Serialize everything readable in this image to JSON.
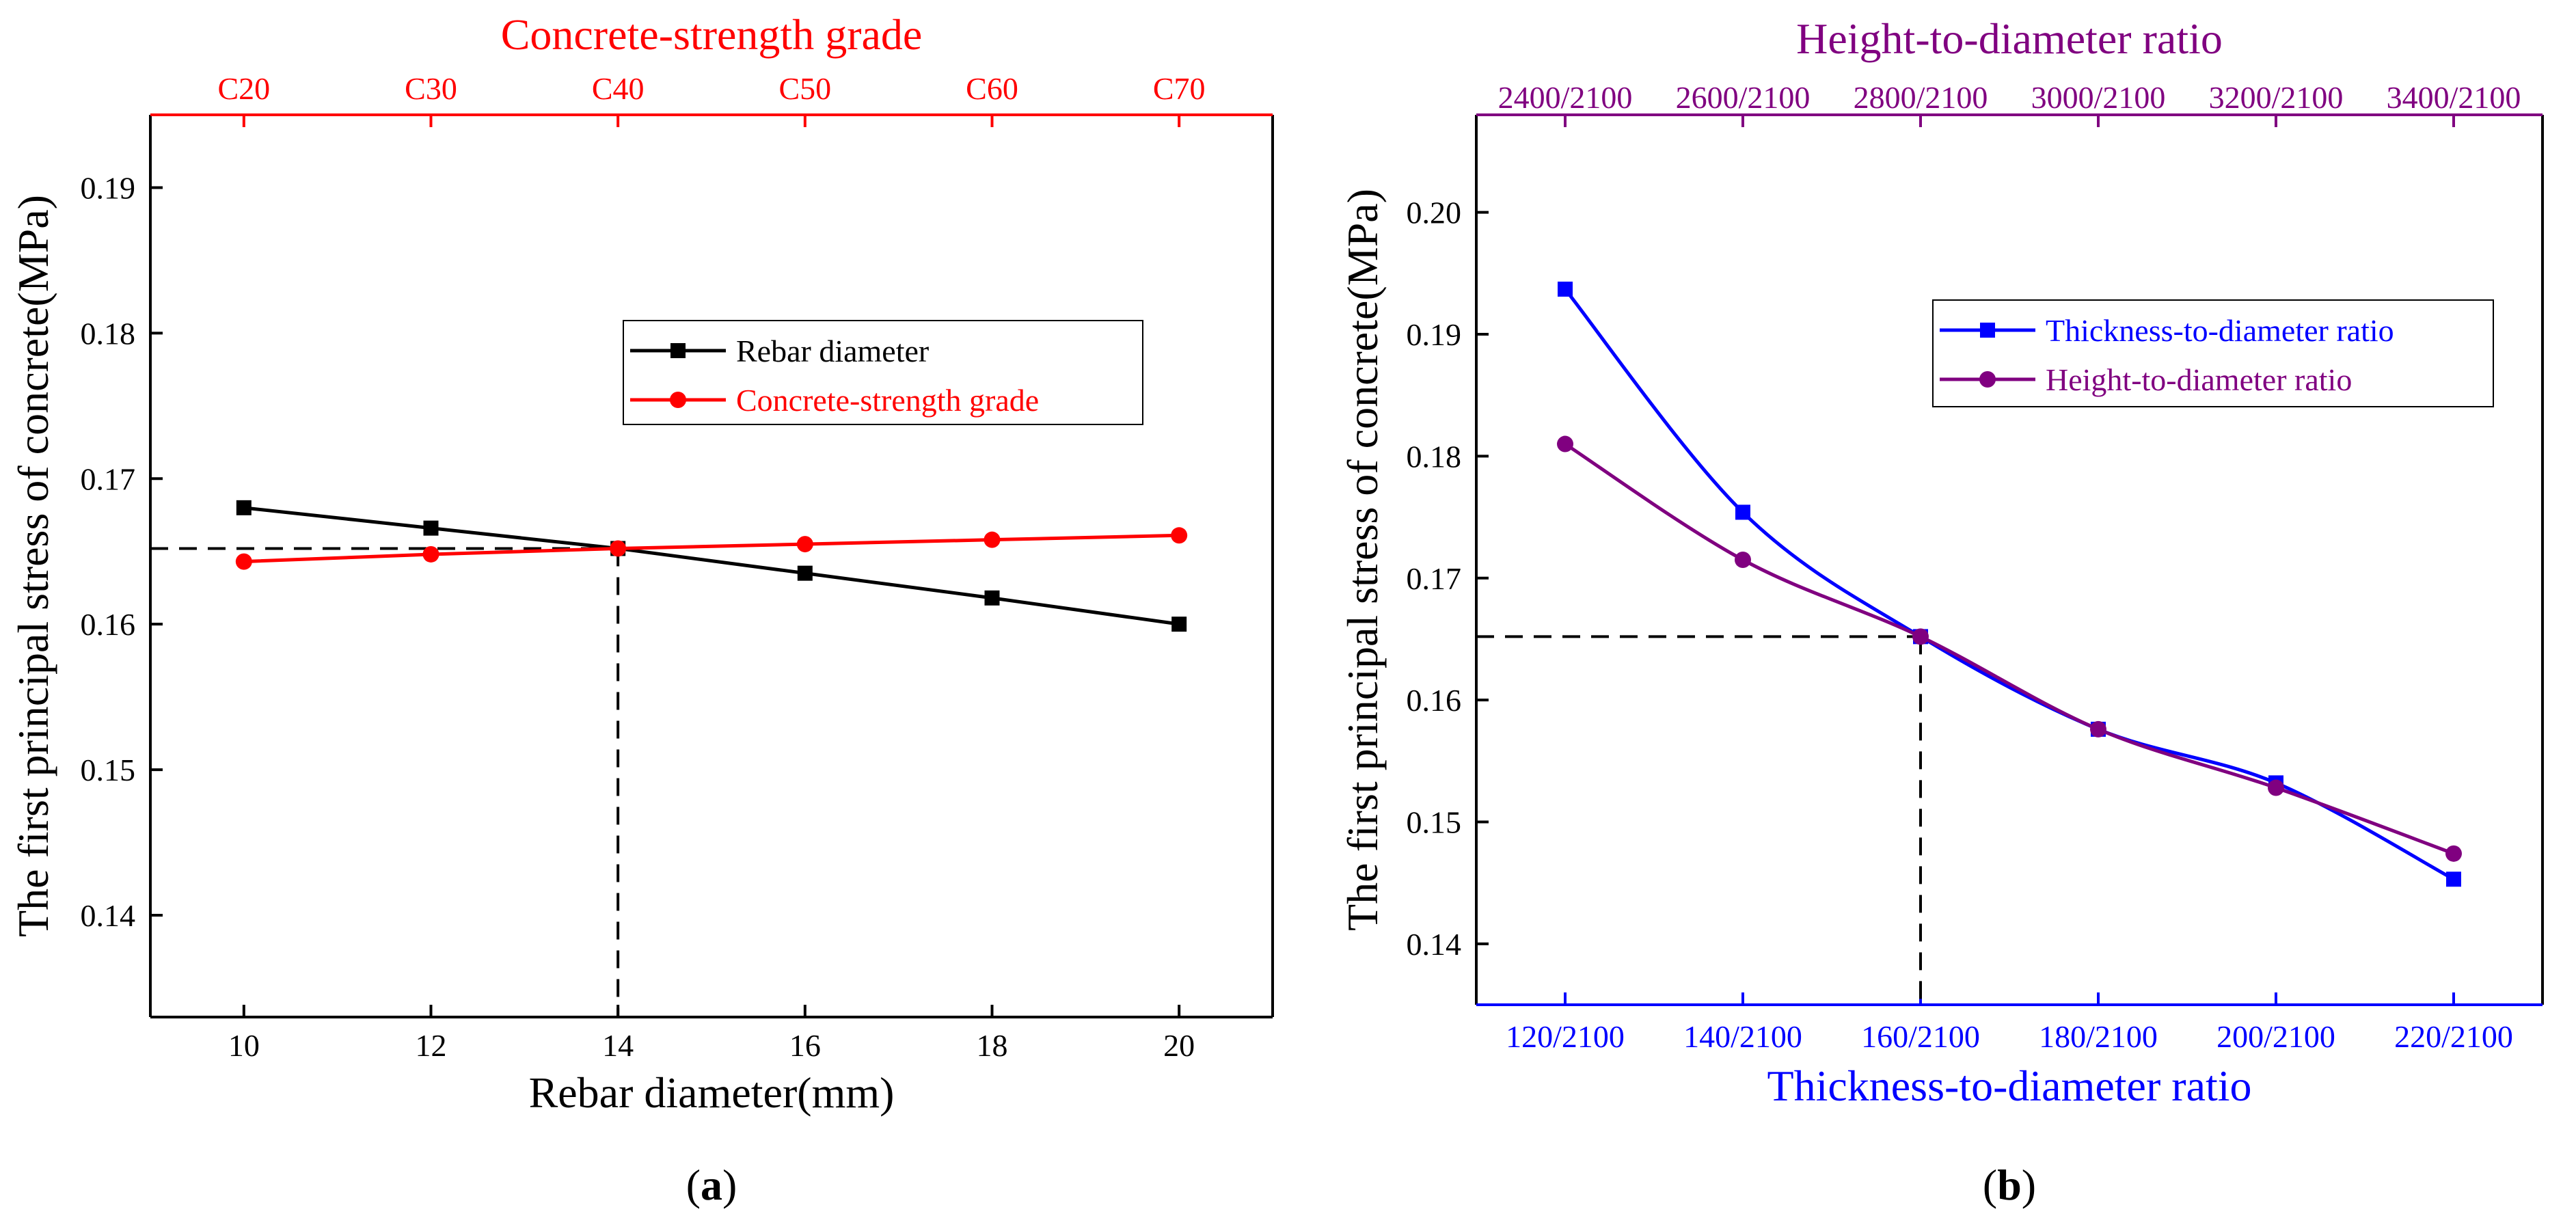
{
  "chart_data": [
    {
      "type": "line",
      "panel_label": "a",
      "colors": {
        "axis": "#000000",
        "top_axis": "#ff0000",
        "series": [
          "#000000",
          "#ff0000"
        ]
      },
      "ylabel": "The first principal stress of concrete(MPa)",
      "ylim": [
        0.133,
        0.195
      ],
      "yticks": [
        0.14,
        0.15,
        0.16,
        0.17,
        0.18,
        0.19
      ],
      "yticks_labels": [
        "0.14",
        "0.15",
        "0.16",
        "0.17",
        "0.18",
        "0.19"
      ],
      "bottom_axis": {
        "label": "Rebar diameter(mm)",
        "lim": [
          9,
          21
        ],
        "ticks": [
          10,
          12,
          14,
          16,
          18,
          20
        ],
        "tick_labels": [
          "10",
          "12",
          "14",
          "16",
          "18",
          "20"
        ]
      },
      "top_axis": {
        "label": "Concrete-strength grade",
        "tick_labels": [
          "C20",
          "C30",
          "C40",
          "C50",
          "C60",
          "C70"
        ]
      },
      "x": [
        10,
        12,
        14,
        16,
        18,
        20
      ],
      "series": [
        {
          "name": "Rebar diameter",
          "marker": "square",
          "values": [
            0.168,
            0.1666,
            0.1652,
            0.1635,
            0.1618,
            0.16
          ]
        },
        {
          "name": "Concrete-strength grade",
          "marker": "circle",
          "values": [
            0.1643,
            0.1648,
            0.1652,
            0.1655,
            0.1658,
            0.1661
          ]
        }
      ],
      "reference": {
        "x": 14,
        "y": 0.1652
      },
      "legend": "upper-right"
    },
    {
      "type": "line",
      "panel_label": "b",
      "colors": {
        "axis": "#000000",
        "bottom_axis": "#0000ff",
        "top_axis": "#800080",
        "series": [
          "#0000ff",
          "#800080"
        ]
      },
      "ylabel": "The first principal stress of concrete(MPa)",
      "ylim": [
        0.135,
        0.208
      ],
      "yticks": [
        0.14,
        0.15,
        0.16,
        0.17,
        0.18,
        0.19,
        0.2
      ],
      "yticks_labels": [
        "0.14",
        "0.15",
        "0.16",
        "0.17",
        "0.18",
        "0.19",
        "0.20"
      ],
      "bottom_axis": {
        "label": "Thickness-to-diameter ratio",
        "lim": [
          -0.5,
          5.5
        ],
        "tick_labels": [
          "120/2100",
          "140/2100",
          "160/2100",
          "180/2100",
          "200/2100",
          "220/2100"
        ]
      },
      "top_axis": {
        "label": "Height-to-diameter ratio",
        "tick_labels": [
          "2400/2100",
          "2600/2100",
          "2800/2100",
          "3000/2100",
          "3200/2100",
          "3400/2100"
        ]
      },
      "x": [
        0,
        1,
        2,
        3,
        4,
        5
      ],
      "series": [
        {
          "name": "Thickness-to-diameter ratio",
          "marker": "square",
          "values": [
            0.1937,
            0.1754,
            0.1652,
            0.1576,
            0.1532,
            0.1453
          ]
        },
        {
          "name": "Height-to-diameter ratio",
          "marker": "circle",
          "values": [
            0.181,
            0.1715,
            0.1652,
            0.1576,
            0.1528,
            0.1474
          ]
        }
      ],
      "reference": {
        "x": 2,
        "y": 0.1652
      },
      "legend": "upper-right"
    }
  ]
}
